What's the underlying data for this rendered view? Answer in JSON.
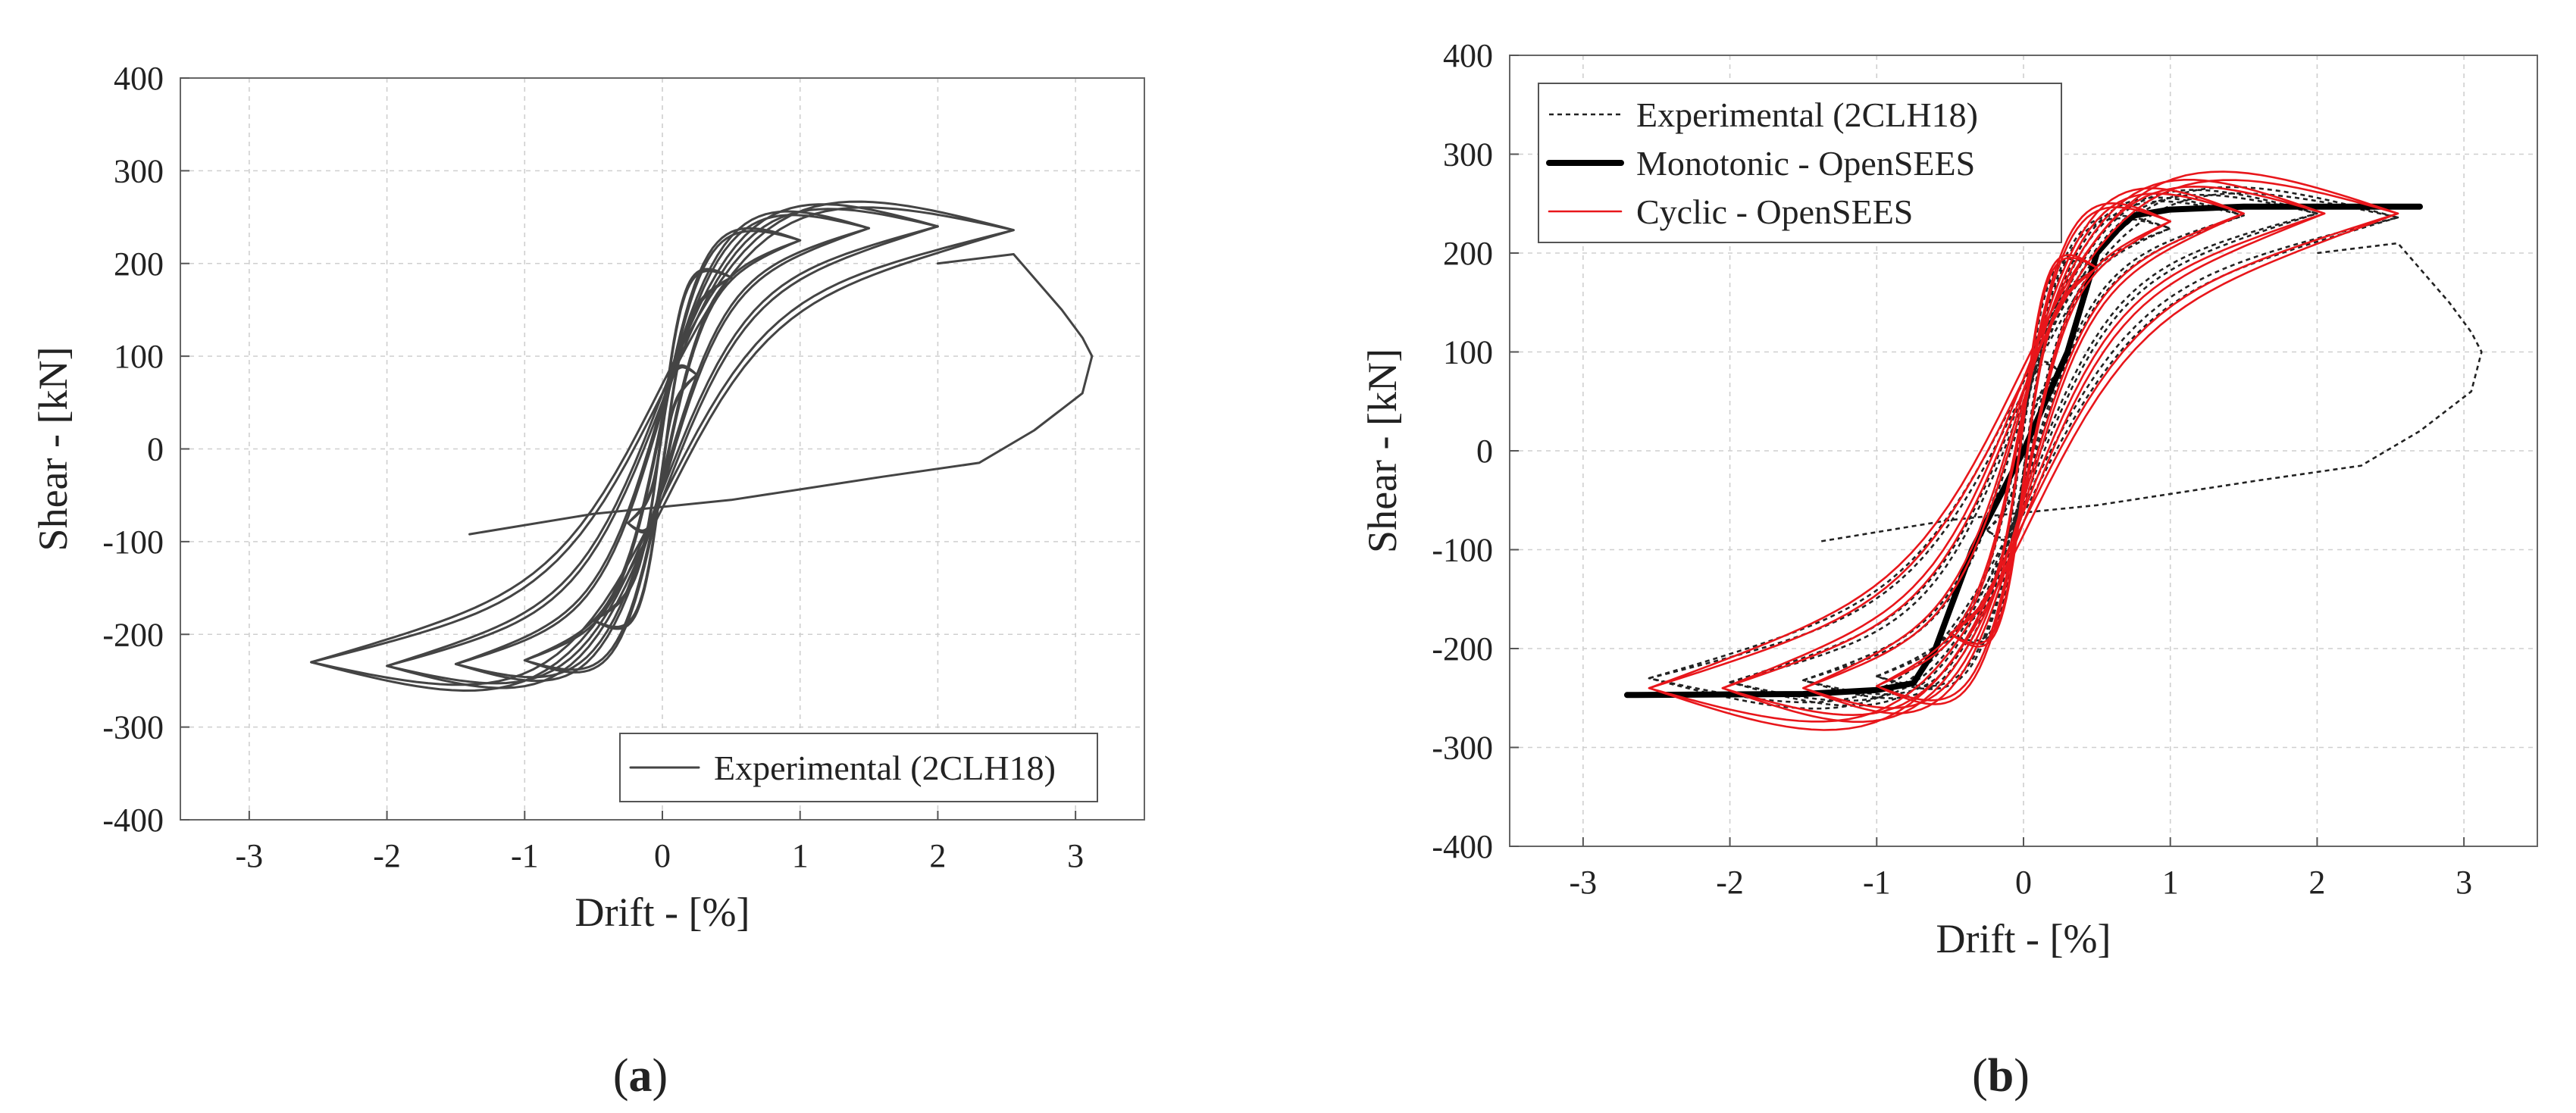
{
  "chart_data": [
    {
      "type": "line",
      "panel": "a",
      "caption_open": "(",
      "caption_letter": "a",
      "caption_close": ")",
      "xlabel": "Drift - [%]",
      "ylabel": "Shear - [kN]",
      "xlim": [
        -3.5,
        3.5
      ],
      "ylim": [
        -400,
        400
      ],
      "xticks": [
        -3,
        -2,
        -1,
        0,
        1,
        2,
        3
      ],
      "yticks": [
        -400,
        -300,
        -200,
        -100,
        0,
        100,
        200,
        300,
        400
      ],
      "grid": true,
      "legend_position": "bottom-right",
      "series": [
        {
          "name": "Experimental (2CLH18)",
          "style": "solid",
          "color": "#444444",
          "cycles": [
            {
              "amp": 0.25,
              "pos_peak": 80,
              "neg_peak": -80
            },
            {
              "amp": 0.5,
              "pos_peak": 185,
              "neg_peak": -185
            },
            {
              "amp": 1.0,
              "pos_peak": 225,
              "neg_peak": -228
            },
            {
              "amp": 1.5,
              "pos_peak": 238,
              "neg_peak": -232
            },
            {
              "amp": 2.0,
              "pos_peak": 240,
              "neg_peak": -234
            },
            {
              "amp": 2.55,
              "pos_peak": 236,
              "neg_peak": -230
            }
          ],
          "envelope_tail": [
            [
              2.0,
              200
            ],
            [
              2.55,
              210
            ],
            [
              2.9,
              150
            ],
            [
              3.05,
              120
            ],
            [
              3.12,
              100
            ],
            [
              3.05,
              60
            ],
            [
              2.7,
              20
            ],
            [
              2.3,
              -15
            ],
            [
              1.6,
              -30
            ],
            [
              0.5,
              -55
            ],
            [
              -0.5,
              -70
            ],
            [
              -1.4,
              -92
            ]
          ]
        }
      ]
    },
    {
      "type": "line",
      "panel": "b",
      "caption_open": "(",
      "caption_letter": "b",
      "caption_close": ")",
      "xlabel": "Drift - [%]",
      "ylabel": "Shear - [kN]",
      "xlim": [
        -3.5,
        3.5
      ],
      "ylim": [
        -400,
        400
      ],
      "xticks": [
        -3,
        -2,
        -1,
        0,
        1,
        2,
        3
      ],
      "yticks": [
        -400,
        -300,
        -200,
        -100,
        0,
        100,
        200,
        300,
        400
      ],
      "grid": true,
      "legend_position": "top-left",
      "series": [
        {
          "name": "Experimental (2CLH18)",
          "style": "dotted",
          "color": "#222222",
          "cycles": [
            {
              "amp": 0.25,
              "pos_peak": 80,
              "neg_peak": -80
            },
            {
              "amp": 0.5,
              "pos_peak": 185,
              "neg_peak": -185
            },
            {
              "amp": 1.0,
              "pos_peak": 225,
              "neg_peak": -228
            },
            {
              "amp": 1.5,
              "pos_peak": 238,
              "neg_peak": -232
            },
            {
              "amp": 2.0,
              "pos_peak": 240,
              "neg_peak": -234
            },
            {
              "amp": 2.55,
              "pos_peak": 236,
              "neg_peak": -230
            }
          ],
          "envelope_tail": [
            [
              2.0,
              200
            ],
            [
              2.55,
              210
            ],
            [
              2.9,
              150
            ],
            [
              3.05,
              120
            ],
            [
              3.12,
              100
            ],
            [
              3.05,
              60
            ],
            [
              2.7,
              20
            ],
            [
              2.3,
              -15
            ],
            [
              1.6,
              -30
            ],
            [
              0.5,
              -55
            ],
            [
              -0.5,
              -70
            ],
            [
              -1.4,
              -92
            ]
          ]
        },
        {
          "name": "Monotonic - OpenSEES",
          "style": "thick",
          "color": "#000000",
          "points": [
            [
              -2.7,
              -247
            ],
            [
              -1.5,
              -246
            ],
            [
              -1.0,
              -242
            ],
            [
              -0.75,
              -235
            ],
            [
              -0.6,
              -200
            ],
            [
              -0.5,
              -160
            ],
            [
              -0.35,
              -100
            ],
            [
              0.0,
              0
            ],
            [
              0.3,
              100
            ],
            [
              0.5,
              200
            ],
            [
              0.65,
              225
            ],
            [
              0.75,
              238
            ],
            [
              1.0,
              244
            ],
            [
              1.5,
              247
            ],
            [
              2.7,
              247
            ]
          ]
        },
        {
          "name": "Cyclic - OpenSEES",
          "style": "solid",
          "color": "#e8161b",
          "cycles": [
            {
              "amp": 0.5,
              "pos_peak": 185,
              "neg_peak": -185
            },
            {
              "amp": 1.0,
              "pos_peak": 232,
              "neg_peak": -238
            },
            {
              "amp": 1.5,
              "pos_peak": 240,
              "neg_peak": -240
            },
            {
              "amp": 2.05,
              "pos_peak": 240,
              "neg_peak": -240
            },
            {
              "amp": 2.55,
              "pos_peak": 240,
              "neg_peak": -240
            }
          ]
        }
      ]
    }
  ]
}
